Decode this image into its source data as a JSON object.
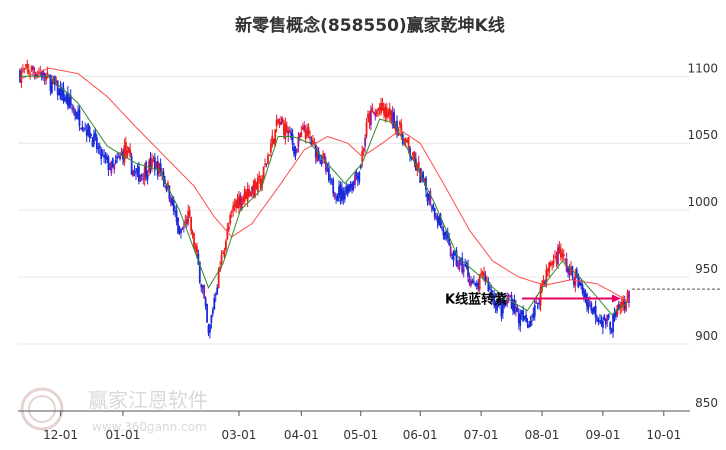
{
  "chart_data": {
    "type": "candlestick",
    "title": "新零售概念(858550)赢家乾坤K线",
    "y_axis": {
      "position": "right",
      "ylim": [
        850,
        1120
      ],
      "ticks": [
        1100,
        1050,
        1000,
        950,
        900,
        850
      ]
    },
    "x_axis": {
      "ticks": [
        "12-01",
        "01-01",
        "03-01",
        "04-01",
        "05-01",
        "06-01",
        "07-01",
        "08-01",
        "09-01",
        "10-01"
      ]
    },
    "close_path": [
      {
        "t": 0,
        "v": 1102
      },
      {
        "t": 8,
        "v": 1105
      },
      {
        "t": 16,
        "v": 1101
      },
      {
        "t": 24,
        "v": 1092
      },
      {
        "t": 32,
        "v": 1082
      },
      {
        "t": 40,
        "v": 1070
      },
      {
        "t": 48,
        "v": 1058
      },
      {
        "t": 56,
        "v": 1040
      },
      {
        "t": 64,
        "v": 1030
      },
      {
        "t": 72,
        "v": 1045
      },
      {
        "t": 80,
        "v": 1025
      },
      {
        "t": 86,
        "v": 1030
      },
      {
        "t": 92,
        "v": 1035
      },
      {
        "t": 98,
        "v": 1028
      },
      {
        "t": 104,
        "v": 1010
      },
      {
        "t": 110,
        "v": 980
      },
      {
        "t": 116,
        "v": 995
      },
      {
        "t": 120,
        "v": 975
      },
      {
        "t": 126,
        "v": 940
      },
      {
        "t": 130,
        "v": 905
      },
      {
        "t": 134,
        "v": 935
      },
      {
        "t": 140,
        "v": 970
      },
      {
        "t": 148,
        "v": 1005
      },
      {
        "t": 158,
        "v": 1015
      },
      {
        "t": 166,
        "v": 1020
      },
      {
        "t": 172,
        "v": 1045
      },
      {
        "t": 178,
        "v": 1065
      },
      {
        "t": 184,
        "v": 1060
      },
      {
        "t": 190,
        "v": 1045
      },
      {
        "t": 196,
        "v": 1060
      },
      {
        "t": 202,
        "v": 1048
      },
      {
        "t": 208,
        "v": 1040
      },
      {
        "t": 214,
        "v": 1018
      },
      {
        "t": 222,
        "v": 1012
      },
      {
        "t": 228,
        "v": 1020
      },
      {
        "t": 234,
        "v": 1030
      },
      {
        "t": 240,
        "v": 1068
      },
      {
        "t": 248,
        "v": 1075
      },
      {
        "t": 256,
        "v": 1070
      },
      {
        "t": 262,
        "v": 1060
      },
      {
        "t": 268,
        "v": 1045
      },
      {
        "t": 274,
        "v": 1030
      },
      {
        "t": 282,
        "v": 1010
      },
      {
        "t": 290,
        "v": 990
      },
      {
        "t": 296,
        "v": 970
      },
      {
        "t": 302,
        "v": 960
      },
      {
        "t": 308,
        "v": 955
      },
      {
        "t": 314,
        "v": 940
      },
      {
        "t": 320,
        "v": 952
      },
      {
        "t": 326,
        "v": 935
      },
      {
        "t": 332,
        "v": 925
      },
      {
        "t": 338,
        "v": 935
      },
      {
        "t": 344,
        "v": 920
      },
      {
        "t": 350,
        "v": 915
      },
      {
        "t": 356,
        "v": 928
      },
      {
        "t": 360,
        "v": 945
      },
      {
        "t": 366,
        "v": 960
      },
      {
        "t": 372,
        "v": 970
      },
      {
        "t": 378,
        "v": 955
      },
      {
        "t": 384,
        "v": 948
      },
      {
        "t": 390,
        "v": 935
      },
      {
        "t": 396,
        "v": 925
      },
      {
        "t": 402,
        "v": 918
      },
      {
        "t": 408,
        "v": 915
      },
      {
        "t": 414,
        "v": 928
      },
      {
        "t": 420,
        "v": 935
      }
    ],
    "moving_averages": [
      {
        "color": "#ff4d4d",
        "points": [
          {
            "t": 0,
            "v": 1098
          },
          {
            "t": 20,
            "v": 1106
          },
          {
            "t": 40,
            "v": 1102
          },
          {
            "t": 60,
            "v": 1085
          },
          {
            "t": 80,
            "v": 1062
          },
          {
            "t": 100,
            "v": 1040
          },
          {
            "t": 120,
            "v": 1018
          },
          {
            "t": 134,
            "v": 995
          },
          {
            "t": 146,
            "v": 980
          },
          {
            "t": 160,
            "v": 990
          },
          {
            "t": 180,
            "v": 1020
          },
          {
            "t": 196,
            "v": 1045
          },
          {
            "t": 212,
            "v": 1055
          },
          {
            "t": 226,
            "v": 1050
          },
          {
            "t": 236,
            "v": 1040
          },
          {
            "t": 250,
            "v": 1050
          },
          {
            "t": 262,
            "v": 1060
          },
          {
            "t": 276,
            "v": 1050
          },
          {
            "t": 292,
            "v": 1020
          },
          {
            "t": 310,
            "v": 985
          },
          {
            "t": 326,
            "v": 962
          },
          {
            "t": 344,
            "v": 950
          },
          {
            "t": 362,
            "v": 944
          },
          {
            "t": 380,
            "v": 948
          },
          {
            "t": 398,
            "v": 945
          },
          {
            "t": 420,
            "v": 932
          }
        ]
      },
      {
        "color": "#2e8b2e",
        "points": [
          {
            "t": 0,
            "v": 1100
          },
          {
            "t": 20,
            "v": 1100
          },
          {
            "t": 40,
            "v": 1080
          },
          {
            "t": 60,
            "v": 1048
          },
          {
            "t": 80,
            "v": 1035
          },
          {
            "t": 96,
            "v": 1030
          },
          {
            "t": 110,
            "v": 1000
          },
          {
            "t": 122,
            "v": 965
          },
          {
            "t": 130,
            "v": 942
          },
          {
            "t": 140,
            "v": 960
          },
          {
            "t": 152,
            "v": 1000
          },
          {
            "t": 166,
            "v": 1015
          },
          {
            "t": 178,
            "v": 1055
          },
          {
            "t": 188,
            "v": 1055
          },
          {
            "t": 200,
            "v": 1050
          },
          {
            "t": 212,
            "v": 1035
          },
          {
            "t": 224,
            "v": 1020
          },
          {
            "t": 236,
            "v": 1035
          },
          {
            "t": 248,
            "v": 1068
          },
          {
            "t": 258,
            "v": 1065
          },
          {
            "t": 270,
            "v": 1040
          },
          {
            "t": 286,
            "v": 1005
          },
          {
            "t": 302,
            "v": 965
          },
          {
            "t": 318,
            "v": 950
          },
          {
            "t": 334,
            "v": 935
          },
          {
            "t": 350,
            "v": 925
          },
          {
            "t": 362,
            "v": 945
          },
          {
            "t": 374,
            "v": 962
          },
          {
            "t": 386,
            "v": 950
          },
          {
            "t": 398,
            "v": 935
          },
          {
            "t": 408,
            "v": 922
          },
          {
            "t": 420,
            "v": 932
          }
        ]
      }
    ],
    "annotation": {
      "text": "K线蓝转紫",
      "value": 934
    }
  },
  "watermark": {
    "cn": "赢家江恩软件",
    "url": "www.360gann.com"
  }
}
